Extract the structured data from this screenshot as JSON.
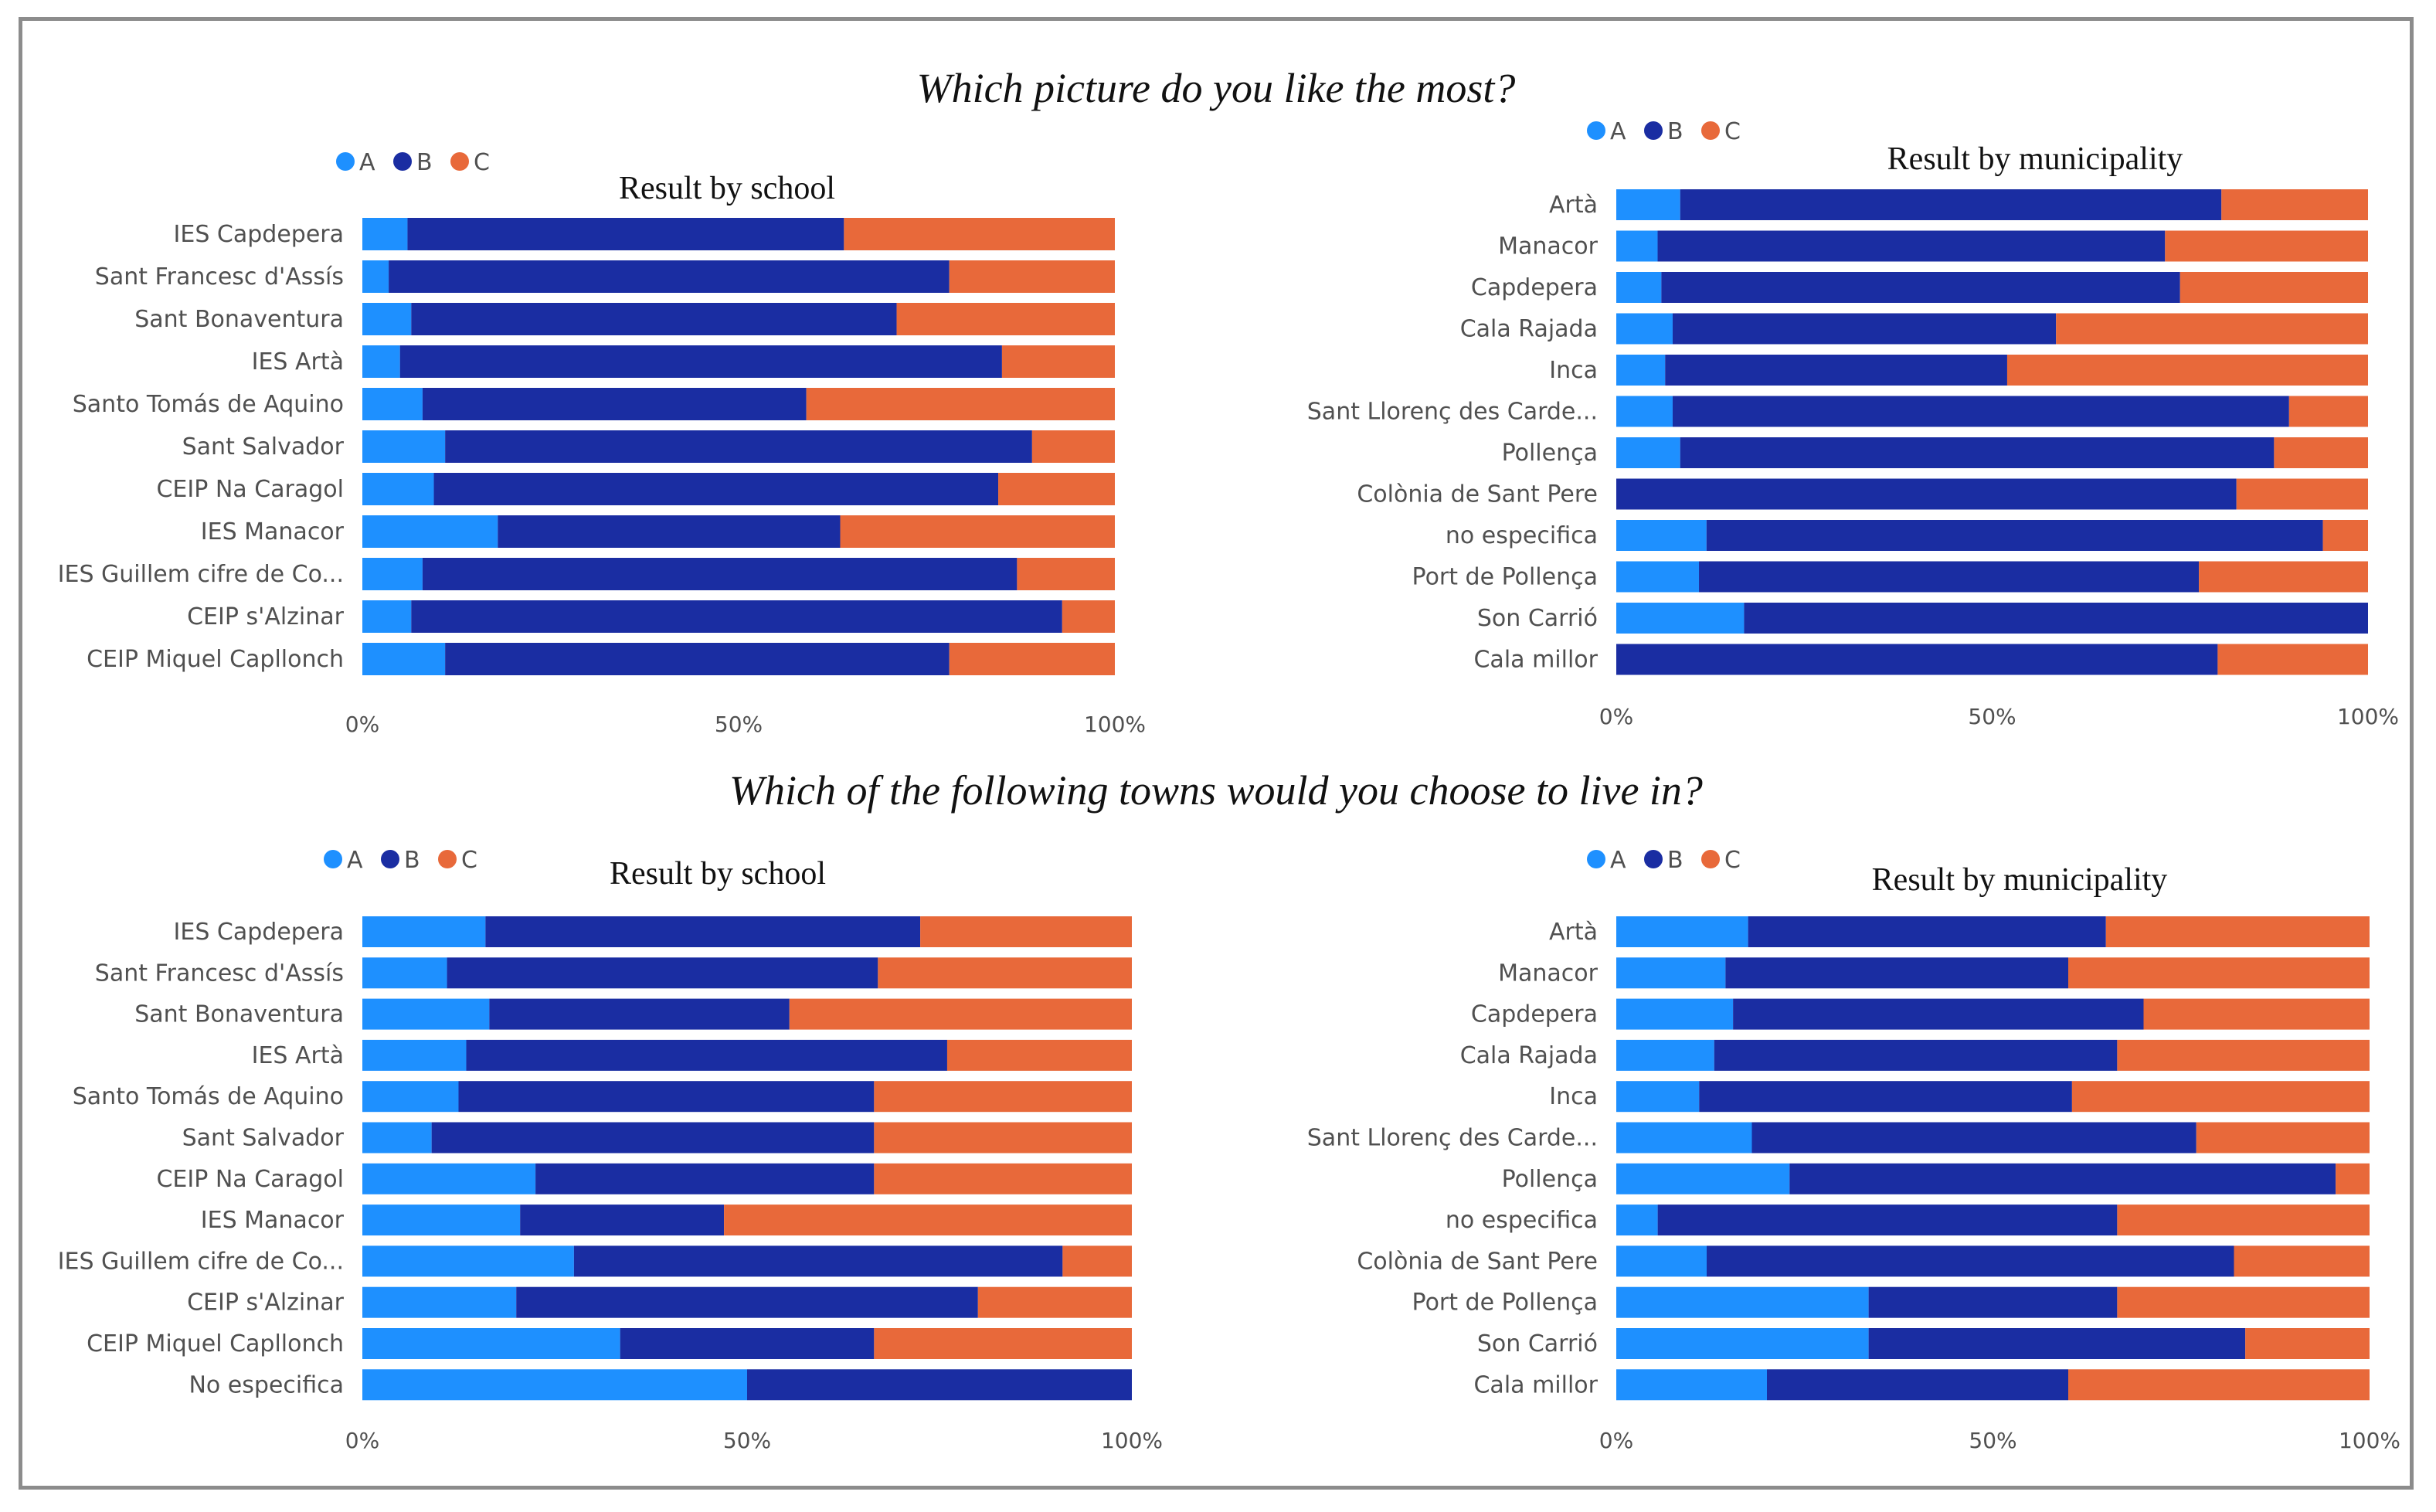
{
  "titles": {
    "top": "Which picture do you like the most?",
    "bottom": "Which of the following towns would you choose to live in?"
  },
  "colors": {
    "A": "#1E90FF",
    "B": "#1A2DA2",
    "C": "#E8693A"
  },
  "chart_data": [
    {
      "type": "bar",
      "orientation": "horizontal",
      "stacked": "percent",
      "title": "Result by school",
      "legend": [
        "A",
        "B",
        "C"
      ],
      "legend_position": "top-left",
      "xlim": [
        0,
        100
      ],
      "ticks": [
        "0%",
        "50%",
        "100%"
      ],
      "categories": [
        "IES Capdepera",
        "Sant Francesc d'Assís",
        "Sant Bonaventura",
        "IES Artà",
        "Santo Tomás de Aquino",
        "Sant Salvador",
        "CEIP Na Caragol",
        "IES Manacor",
        "IES Guillem cifre de Co...",
        "CEIP s'Alzinar",
        "CEIP Miquel Capllonch"
      ],
      "series": [
        {
          "name": "A",
          "values": [
            6,
            3.5,
            6.5,
            5,
            8,
            11,
            9.5,
            18,
            8,
            6.5,
            11
          ]
        },
        {
          "name": "B",
          "values": [
            58,
            74.5,
            64.5,
            80,
            51,
            78,
            75,
            45.5,
            79,
            86.5,
            67
          ]
        },
        {
          "name": "C",
          "values": [
            36,
            22,
            29,
            15,
            41,
            11,
            15.5,
            36.5,
            13,
            7,
            22
          ]
        }
      ]
    },
    {
      "type": "bar",
      "orientation": "horizontal",
      "stacked": "percent",
      "title": "Result by municipality",
      "legend": [
        "A",
        "B",
        "C"
      ],
      "legend_position": "top-left",
      "xlim": [
        0,
        100
      ],
      "ticks": [
        "0%",
        "50%",
        "100%"
      ],
      "categories": [
        "Artà",
        "Manacor",
        "Capdepera",
        "Cala Rajada",
        "Inca",
        "Sant Llorenç des Carde...",
        "Pollença",
        "Colònia de Sant Pere",
        "no especifica",
        "Port de Pollença",
        "Son Carrió",
        "Cala millor"
      ],
      "series": [
        {
          "name": "A",
          "values": [
            8.5,
            5.5,
            6,
            7.5,
            6.5,
            7.5,
            8.5,
            0,
            12,
            11,
            17,
            0
          ]
        },
        {
          "name": "B",
          "values": [
            72,
            67.5,
            69,
            51,
            45.5,
            82,
            79,
            82.5,
            82,
            66.5,
            83,
            80
          ]
        },
        {
          "name": "C",
          "values": [
            19.5,
            27,
            25,
            41.5,
            48,
            10.5,
            12.5,
            17.5,
            6,
            22.5,
            0,
            20
          ]
        }
      ]
    },
    {
      "type": "bar",
      "orientation": "horizontal",
      "stacked": "percent",
      "title": "Result by school",
      "legend": [
        "A",
        "B",
        "C"
      ],
      "legend_position": "top-left",
      "xlim": [
        0,
        100
      ],
      "ticks": [
        "0%",
        "50%",
        "100%"
      ],
      "categories": [
        "IES Capdepera",
        "Sant Francesc d'Assís",
        "Sant Bonaventura",
        "IES Artà",
        "Santo Tomás de Aquino",
        "Sant Salvador",
        "CEIP Na Caragol",
        "IES Manacor",
        "IES Guillem cifre de Co...",
        "CEIP s'Alzinar",
        "CEIP Miquel Capllonch",
        "No especifica"
      ],
      "series": [
        {
          "name": "A",
          "values": [
            16,
            11,
            16.5,
            13.5,
            12.5,
            9,
            22.5,
            20.5,
            27.5,
            20,
            33.5,
            50
          ]
        },
        {
          "name": "B",
          "values": [
            56.5,
            56,
            39,
            62.5,
            54,
            57.5,
            44,
            26.5,
            63.5,
            60,
            33,
            50
          ]
        },
        {
          "name": "C",
          "values": [
            27.5,
            33,
            44.5,
            24,
            33.5,
            33.5,
            33.5,
            53,
            9,
            20,
            33.5,
            0
          ]
        }
      ]
    },
    {
      "type": "bar",
      "orientation": "horizontal",
      "stacked": "percent",
      "title": "Result by municipality",
      "legend": [
        "A",
        "B",
        "C"
      ],
      "legend_position": "top-left",
      "xlim": [
        0,
        100
      ],
      "ticks": [
        "0%",
        "50%",
        "100%"
      ],
      "categories": [
        "Artà",
        "Manacor",
        "Capdepera",
        "Cala Rajada",
        "Inca",
        "Sant Llorenç des Carde...",
        "Pollença",
        "no especifica",
        "Colònia de Sant Pere",
        "Port de Pollença",
        "Son Carrió",
        "Cala millor"
      ],
      "series": [
        {
          "name": "A",
          "values": [
            17.5,
            14.5,
            15.5,
            13,
            11,
            18,
            23,
            5.5,
            12,
            33.5,
            33.5,
            20
          ]
        },
        {
          "name": "B",
          "values": [
            47.5,
            45.5,
            54.5,
            53.5,
            49.5,
            59,
            72.5,
            61,
            70,
            33,
            50,
            40
          ]
        },
        {
          "name": "C",
          "values": [
            35,
            40,
            30,
            33.5,
            39.5,
            23,
            4.5,
            33.5,
            18,
            33.5,
            16.5,
            40
          ]
        }
      ]
    }
  ]
}
